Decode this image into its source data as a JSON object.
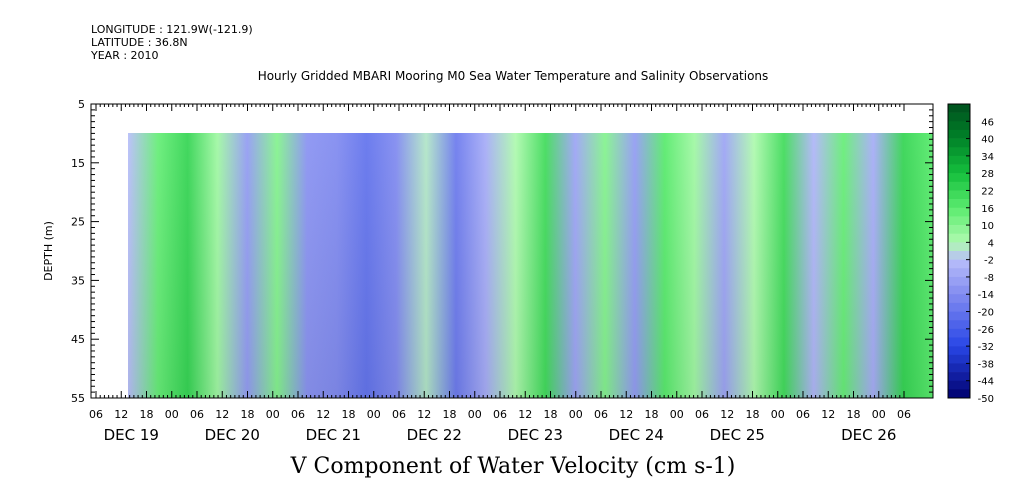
{
  "header": {
    "longitude": "LONGITUDE : 121.9W(-121.9)",
    "latitude": "LATITUDE : 36.8N",
    "year": "YEAR : 2010"
  },
  "chart_data": {
    "type": "heatmap",
    "title": "Hourly Gridded MBARI Mooring M0 Sea Water Temperature and Salinity Observations",
    "xlabel": "V Component of Water Velocity (cm s-1)",
    "ylabel": "DEPTH (m)",
    "y_ticks": [
      "5",
      "15",
      "25",
      "35",
      "45",
      "55"
    ],
    "y_range": [
      5,
      55
    ],
    "data_depth_range": [
      10,
      55
    ],
    "x_hour_ticks": [
      "06",
      "12",
      "18",
      "00",
      "06",
      "12",
      "18",
      "00",
      "06",
      "12",
      "18",
      "00",
      "06",
      "12",
      "18",
      "00",
      "06",
      "12",
      "18",
      "00",
      "06",
      "12",
      "18",
      "00",
      "06",
      "12",
      "18",
      "00",
      "06",
      "12",
      "18",
      "00",
      "06"
    ],
    "x_day_labels": [
      "DEC 19",
      "DEC 20",
      "DEC 21",
      "DEC 22",
      "DEC 23",
      "DEC 24",
      "DEC 25",
      "DEC 26"
    ],
    "colorbar": {
      "labels": [
        "46",
        "40",
        "34",
        "28",
        "22",
        "16",
        "10",
        "4",
        "-2",
        "-8",
        "-14",
        "-20",
        "-26",
        "-32",
        "-38",
        "-44",
        "-50"
      ],
      "min": -50,
      "max": 52
    },
    "hourly_columns_value_profile": [
      {
        "day_hour": "DEC 19 12",
        "value": -2
      },
      {
        "day_hour": "DEC 19 18",
        "value": 14
      },
      {
        "day_hour": "DEC 20 00",
        "value": 22
      },
      {
        "day_hour": "DEC 20 06",
        "value": 6
      },
      {
        "day_hour": "DEC 20 12",
        "value": -10
      },
      {
        "day_hour": "DEC 20 18",
        "value": 10
      },
      {
        "day_hour": "DEC 21 00",
        "value": -12
      },
      {
        "day_hour": "DEC 21 06",
        "value": -14
      },
      {
        "day_hour": "DEC 21 12",
        "value": -20
      },
      {
        "day_hour": "DEC 21 18",
        "value": -14
      },
      {
        "day_hour": "DEC 22 00",
        "value": 2
      },
      {
        "day_hour": "DEC 22 06",
        "value": -18
      },
      {
        "day_hour": "DEC 22 12",
        "value": -6
      },
      {
        "day_hour": "DEC 22 18",
        "value": 4
      },
      {
        "day_hour": "DEC 23 00",
        "value": 20
      },
      {
        "day_hour": "DEC 23 06",
        "value": -8
      },
      {
        "day_hour": "DEC 23 12",
        "value": 10
      },
      {
        "day_hour": "DEC 23 18",
        "value": -10
      },
      {
        "day_hour": "DEC 24 00",
        "value": 16
      },
      {
        "day_hour": "DEC 24 06",
        "value": 6
      },
      {
        "day_hour": "DEC 24 12",
        "value": -8
      },
      {
        "day_hour": "DEC 24 18",
        "value": 4
      },
      {
        "day_hour": "DEC 25 00",
        "value": 20
      },
      {
        "day_hour": "DEC 25 06",
        "value": -4
      },
      {
        "day_hour": "DEC 25 12",
        "value": 14
      },
      {
        "day_hour": "DEC 25 18",
        "value": -6
      },
      {
        "day_hour": "DEC 26 00",
        "value": 22
      },
      {
        "day_hour": "DEC 26 06",
        "value": 16
      }
    ]
  }
}
